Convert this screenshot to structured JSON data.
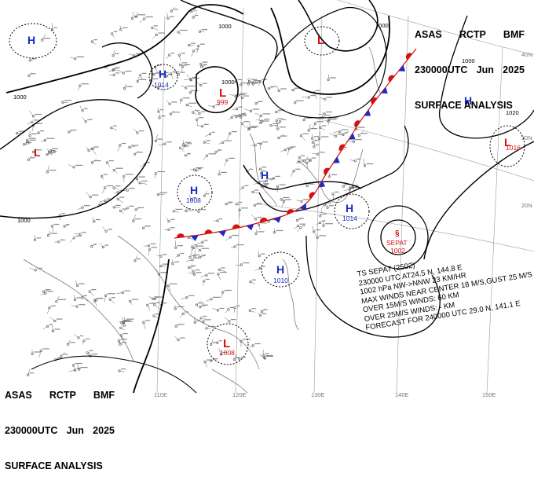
{
  "header": {
    "agency": "ASAS",
    "station": "RCTP",
    "code": "BMF",
    "time": "230000UTC",
    "month": "Jun",
    "year": "2025",
    "title": "SURFACE ANALYSIS"
  },
  "pressure_centers": [
    {
      "type": "H",
      "value": "",
      "color": "#1a2cc4"
    },
    {
      "type": "H",
      "value": "1014",
      "color": "#1a2cc4"
    },
    {
      "type": "L",
      "value": "",
      "color": "#d41010"
    },
    {
      "type": "L",
      "value": "999",
      "color": "#d41010"
    },
    {
      "type": "L",
      "value": "",
      "color": "#d41010"
    },
    {
      "type": "H",
      "value": "",
      "color": "#1a2cc4"
    },
    {
      "type": "L",
      "value": "1016",
      "color": "#d41010"
    },
    {
      "type": "H",
      "value": "",
      "color": "#1a2cc4"
    },
    {
      "type": "H",
      "value": "1008",
      "color": "#1a2cc4"
    },
    {
      "type": "H",
      "value": "1014",
      "color": "#1a2cc4"
    },
    {
      "type": "H",
      "value": "1010",
      "color": "#1a2cc4"
    },
    {
      "type": "L",
      "value": "1008",
      "color": "#d41010"
    }
  ],
  "typhoon": {
    "symbol": "§",
    "name": "SEPAT",
    "pressure": "1002",
    "bulletin": [
      "TS SEPAT (2502)",
      "230000 UTC  AT24.5 N, 144.8 E",
      "1002 hPa  NW->NNW 23 KM/HR",
      "MAX WINDS NEAR CENTER 18 M/S,GUST 25 M/S",
      "OVER 15M/S WINDS: 60 KM",
      "OVER 25M/S WINDS: - KM",
      "FORECAST FOR 240000 UTC 29.0 N, 141.1 E"
    ]
  },
  "isobar_labels": [
    "1000",
    "1000",
    "1000",
    "1000",
    "1000",
    "1000",
    "1020",
    "1020"
  ],
  "lat_labels": [
    "40N",
    "30N",
    "20N"
  ],
  "lon_labels": [
    "110E",
    "120E",
    "130E",
    "140E",
    "150E"
  ],
  "colors": {
    "high": "#1a2cc4",
    "low": "#d41010",
    "cold_front": "#1a2cc4",
    "warm_front": "#d41010",
    "isobar": "#000000"
  }
}
